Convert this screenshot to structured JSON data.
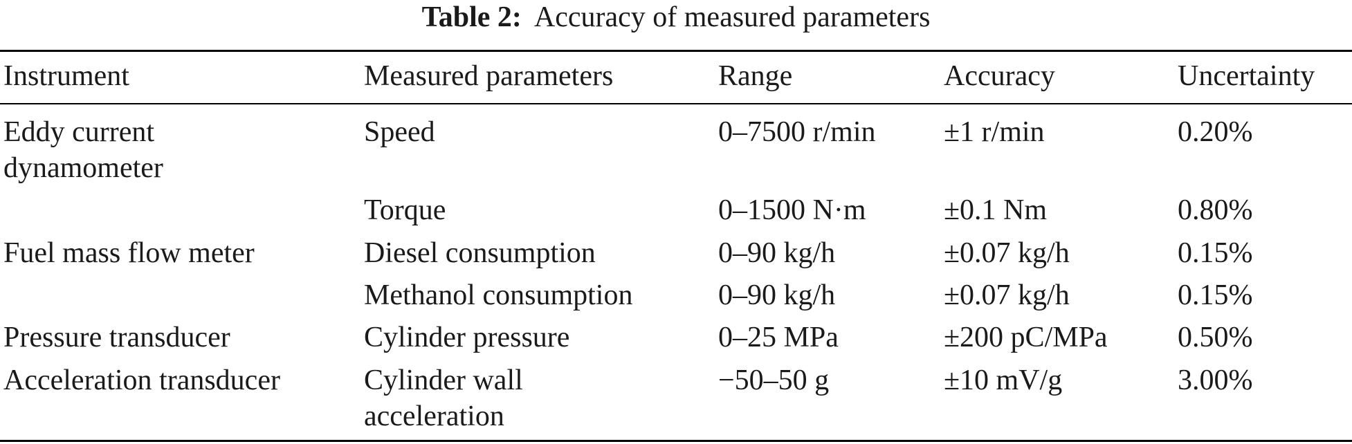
{
  "caption": {
    "label": "Table 2:",
    "title": "Accuracy of measured parameters"
  },
  "columns": [
    "Instrument",
    "Measured parameters",
    "Range",
    "Accuracy",
    "Uncertainty"
  ],
  "rows": [
    {
      "instrument": "Eddy current dynamometer",
      "parameter": "Speed",
      "range": "0–7500 r/min",
      "accuracy": "±1 r/min",
      "uncertainty": "0.20%"
    },
    {
      "instrument": "",
      "parameter": "Torque",
      "range": "0–1500 N·m",
      "accuracy": "±0.1 Nm",
      "uncertainty": "0.80%"
    },
    {
      "instrument": "Fuel mass flow meter",
      "parameter": "Diesel consumption",
      "range": "0–90 kg/h",
      "accuracy": "±0.07 kg/h",
      "uncertainty": "0.15%"
    },
    {
      "instrument": "",
      "parameter": "Methanol consumption",
      "range": "0–90 kg/h",
      "accuracy": "±0.07 kg/h",
      "uncertainty": "0.15%"
    },
    {
      "instrument": "Pressure transducer",
      "parameter": "Cylinder pressure",
      "range": "0–25 MPa",
      "accuracy": "±200 pC/MPa",
      "uncertainty": "0.50%"
    },
    {
      "instrument": "Acceleration transducer",
      "parameter": "Cylinder wall acceleration",
      "range": "−50–50 g",
      "accuracy": "±10 mV/g",
      "uncertainty": "3.00%"
    }
  ]
}
